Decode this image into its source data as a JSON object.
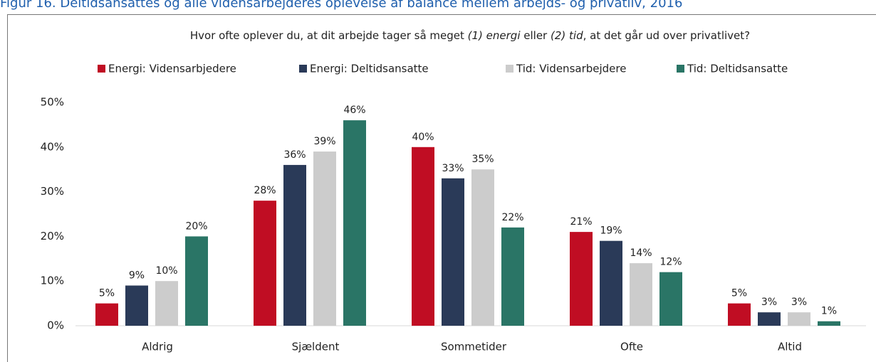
{
  "chart_data": {
    "type": "bar",
    "caption": "Figur 16. Deltidsansattes og alle vidensarbejderes oplevelse af balance mellem arbejds- og privatliv, 2016",
    "subtitle": [
      "Hvor ofte oplever du, at dit arbejde tager så meget ",
      "(1) energi",
      " eller ",
      "(2) tid",
      ", at det går ud over privatlivet?"
    ],
    "categories": [
      "Aldrig",
      "Sjældent",
      "Sommetider",
      "Ofte",
      "Altid"
    ],
    "series": [
      {
        "name": "Energi: Vidensarbjedere",
        "color": "#c00d23",
        "values": [
          5,
          28,
          40,
          21,
          5
        ],
        "value_labels": [
          "5%",
          "28%",
          "40%",
          "21%",
          "5%"
        ]
      },
      {
        "name": "Energi: Deltidsansatte",
        "color": "#2a3a58",
        "values": [
          9,
          36,
          33,
          19,
          3
        ],
        "value_labels": [
          "9%",
          "36%",
          "33%",
          "19%",
          "3%"
        ]
      },
      {
        "name": "Tid: Vidensarbejdere",
        "color": "#cccccc",
        "values": [
          10,
          39,
          35,
          14,
          3
        ],
        "value_labels": [
          "10%",
          "39%",
          "35%",
          "14%",
          "3%"
        ]
      },
      {
        "name": "Tid: Deltidsansatte",
        "color": "#2a7566",
        "values": [
          20,
          46,
          22,
          12,
          1
        ],
        "value_labels": [
          "20%",
          "46%",
          "22%",
          "12%",
          "1%"
        ]
      }
    ],
    "ylim": [
      0,
      50
    ],
    "yticks": [
      {
        "value": 0,
        "label": "0%"
      },
      {
        "value": 10,
        "label": "10%"
      },
      {
        "value": 20,
        "label": "20%"
      },
      {
        "value": 30,
        "label": "30%"
      },
      {
        "value": 40,
        "label": "40%"
      },
      {
        "value": 50,
        "label": "50%"
      }
    ],
    "legend": "top"
  }
}
